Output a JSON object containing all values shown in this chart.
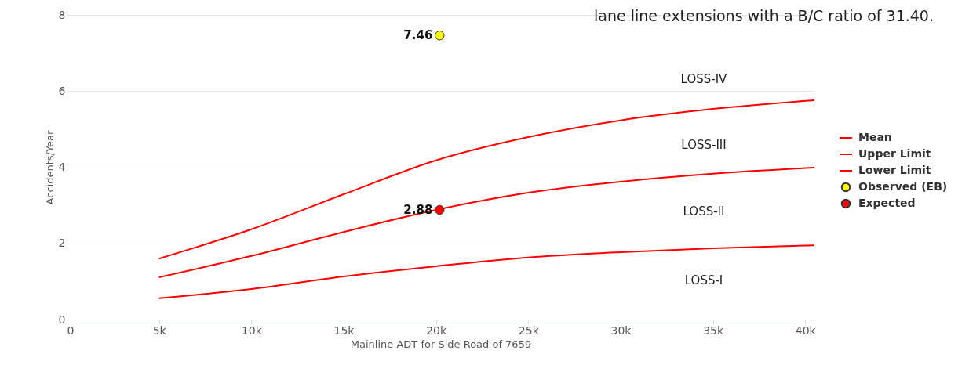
{
  "chart_data": {
    "type": "line",
    "xlabel": "Mainline ADT for Side Road of 7659",
    "ylabel": "Accidents/Year",
    "x": [
      5000,
      10000,
      15000,
      20000,
      25000,
      30000,
      35000,
      40500
    ],
    "series": [
      {
        "name": "Mean",
        "color": "#ff0000",
        "values": [
          1.11,
          1.67,
          2.3,
          2.88,
          3.33,
          3.62,
          3.83,
          3.99
        ]
      },
      {
        "name": "Upper Limit",
        "color": "#ff0000",
        "values": [
          1.6,
          2.37,
          3.29,
          4.18,
          4.79,
          5.23,
          5.53,
          5.76
        ]
      },
      {
        "name": "Lower Limit",
        "color": "#ff0000",
        "values": [
          0.56,
          0.8,
          1.13,
          1.4,
          1.63,
          1.77,
          1.87,
          1.95
        ]
      },
      {
        "name": "Observed (EB)",
        "type": "scatter",
        "marker": "circle",
        "color": "#ffff00",
        "x": [
          20200
        ],
        "values": [
          7.46
        ],
        "value_labels": [
          "7.46"
        ]
      },
      {
        "name": "Expected",
        "type": "scatter",
        "marker": "circle",
        "color": "#ff0000",
        "x": [
          20200
        ],
        "values": [
          2.88
        ],
        "value_labels": [
          "2.88"
        ]
      }
    ],
    "xlim": [
      0,
      40500
    ],
    "xticks": [
      0,
      {
        "value": 5000,
        "label": "5k"
      },
      {
        "value": 10000,
        "label": "10k"
      },
      {
        "value": 15000,
        "label": "15k"
      },
      {
        "value": 20000,
        "label": "20k"
      },
      {
        "value": 25000,
        "label": "25k"
      },
      {
        "value": 30000,
        "label": "30k"
      },
      {
        "value": 35000,
        "label": "35k"
      },
      {
        "value": 40000,
        "label": "40k"
      }
    ],
    "ylim": [
      0,
      8
    ],
    "yticks": [
      0,
      2,
      4,
      6,
      8
    ],
    "annotations": [
      "LOSS-IV",
      "LOSS-III",
      "LOSS-II",
      "LOSS-I",
      "lane line extensions with a B/C ratio of 31.40."
    ],
    "grid": "y",
    "legend": "right",
    "line_style": "solid"
  }
}
